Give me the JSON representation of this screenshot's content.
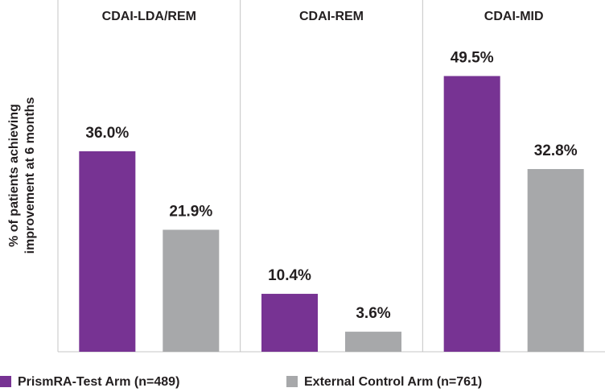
{
  "chart_data": {
    "type": "bar",
    "y_label": [
      "% of patients achieving",
      "improvement at 6 months"
    ],
    "categories": [
      "CDAI-LDA/REM",
      "CDAI-REM",
      "CDAI-MID"
    ],
    "series": [
      {
        "name": "PrismRA-Test Arm (n=489)",
        "color": "#773393",
        "values": [
          36.0,
          10.4,
          49.5
        ],
        "value_labels": [
          "36.0%",
          "10.4%",
          "49.5%"
        ]
      },
      {
        "name": "External Control Arm (n=761)",
        "color": "#a7a8aa",
        "values": [
          21.9,
          3.6,
          32.8
        ],
        "value_labels": [
          "21.9%",
          "3.6%",
          "32.8%"
        ]
      }
    ]
  }
}
